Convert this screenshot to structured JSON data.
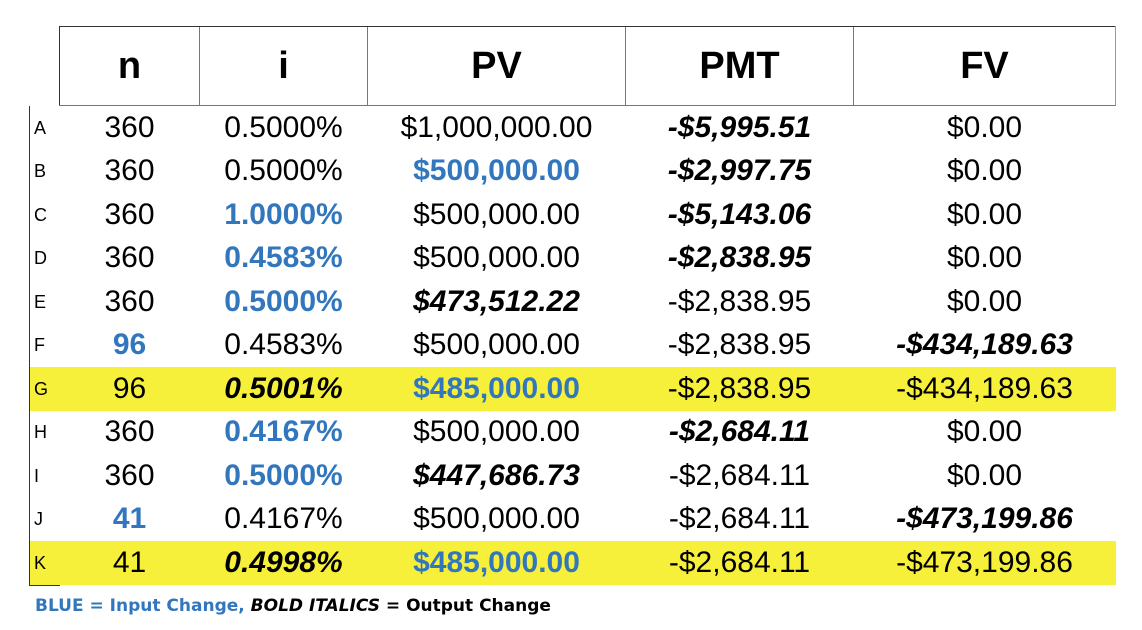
{
  "headers": {
    "n": "n",
    "i": "i",
    "pv": "PV",
    "pmt": "PMT",
    "fv": "FV"
  },
  "rows": [
    {
      "label": "A",
      "n": "360",
      "i": "0.5000%",
      "pv": "$1,000,000.00",
      "pmt": "-$5,995.51",
      "fv": "$0.00"
    },
    {
      "label": "B",
      "n": "360",
      "i": "0.5000%",
      "pv": "$500,000.00",
      "pmt": "-$2,997.75",
      "fv": "$0.00"
    },
    {
      "label": "C",
      "n": "360",
      "i": "1.0000%",
      "pv": "$500,000.00",
      "pmt": "-$5,143.06",
      "fv": "$0.00"
    },
    {
      "label": "D",
      "n": "360",
      "i": "0.4583%",
      "pv": "$500,000.00",
      "pmt": "-$2,838.95",
      "fv": "$0.00"
    },
    {
      "label": "E",
      "n": "360",
      "i": "0.5000%",
      "pv": "$473,512.22",
      "pmt": "-$2,838.95",
      "fv": "$0.00"
    },
    {
      "label": "F",
      "n": "96",
      "i": "0.4583%",
      "pv": "$500,000.00",
      "pmt": "-$2,838.95",
      "fv": "-$434,189.63"
    },
    {
      "label": "G",
      "n": "96",
      "i": "0.5001%",
      "pv": "$485,000.00",
      "pmt": "-$2,838.95",
      "fv": "-$434,189.63"
    },
    {
      "label": "H",
      "n": "360",
      "i": "0.4167%",
      "pv": "$500,000.00",
      "pmt": "-$2,684.11",
      "fv": "$0.00"
    },
    {
      "label": "I",
      "n": "360",
      "i": "0.5000%",
      "pv": "$447,686.73",
      "pmt": "-$2,684.11",
      "fv": "$0.00"
    },
    {
      "label": "J",
      "n": "41",
      "i": "0.4167%",
      "pv": "$500,000.00",
      "pmt": "-$2,684.11",
      "fv": "-$473,199.86"
    },
    {
      "label": "K",
      "n": "41",
      "i": "0.4998%",
      "pv": "$485,000.00",
      "pmt": "-$2,684.11",
      "fv": "-$473,199.86"
    }
  ],
  "legend": {
    "blue_part": "BLUE = Input Change,",
    "bold_italic_part": "BOLD ITALICS",
    "rest": "= Output Change"
  },
  "colors": {
    "input_blue": "#3277bd",
    "highlight_yellow": "#f7f03a"
  }
}
